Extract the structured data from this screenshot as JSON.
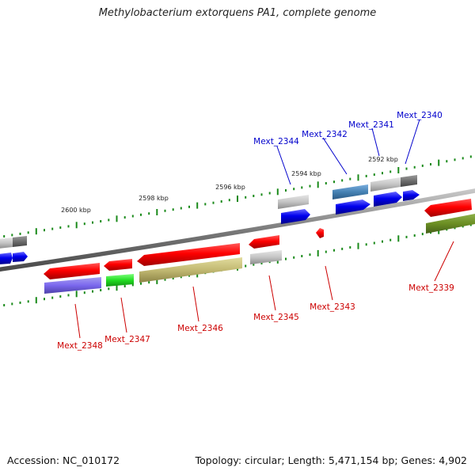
{
  "title": "Methylobacterium extorquens PA1, complete genome",
  "footer": {
    "accession": "Accession: NC_010172",
    "summary": "Topology: circular; Length: 5,471,154 bp; Genes: 4,902"
  },
  "scale_labels": [
    "2600 kbp",
    "2598 kbp",
    "2596 kbp",
    "2594 kbp",
    "2592 kbp"
  ],
  "genes_top": [
    {
      "name": "Mext_2344",
      "color": "#0000cc"
    },
    {
      "name": "Mext_2342",
      "color": "#0000cc"
    },
    {
      "name": "Mext_2341",
      "color": "#0000cc"
    },
    {
      "name": "Mext_2340",
      "color": "#0000cc"
    }
  ],
  "genes_bottom": [
    {
      "name": "Mext_2348",
      "color": "#cc0000"
    },
    {
      "name": "Mext_2347",
      "color": "#cc0000"
    },
    {
      "name": "Mext_2346",
      "color": "#cc0000"
    },
    {
      "name": "Mext_2345",
      "color": "#cc0000"
    },
    {
      "name": "Mext_2343",
      "color": "#cc0000"
    },
    {
      "name": "Mext_2339",
      "color": "#cc0000"
    }
  ],
  "colors": {
    "backbone": "#808080",
    "tick": "#1a8a1a",
    "forward_cds": "#0000ee",
    "reverse_cds": "#ee0000"
  }
}
